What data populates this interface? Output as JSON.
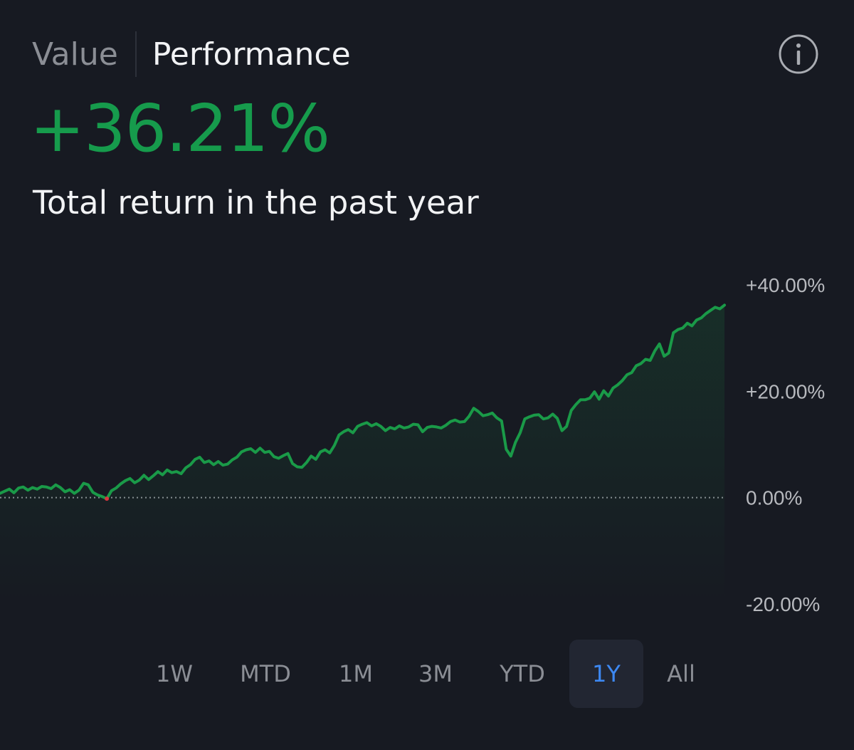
{
  "header": {
    "tab_value": "Value",
    "tab_performance": "Performance",
    "active_tab": "Performance"
  },
  "summary": {
    "total_return": "+36.21%",
    "subtitle": "Total return in the past year"
  },
  "colors": {
    "positive": "#169b4c",
    "line": "#1a9a48",
    "accent": "#3d88f2",
    "background": "#171a22"
  },
  "icons": {
    "info": "info-icon"
  },
  "chart_data": {
    "type": "area",
    "title": "",
    "xlabel": "",
    "ylabel": "",
    "ylim": [
      -20,
      40
    ],
    "yticks": [
      "+40.00%",
      "+20.00%",
      "0.00%",
      "-20.00%"
    ],
    "ytick_values": [
      40,
      20,
      0,
      -20
    ],
    "baseline": 0,
    "baseline_style": "dotted",
    "grid": false,
    "series": [
      {
        "values": [
          0.8,
          1.2,
          1.6,
          0.9,
          1.8,
          2.0,
          1.4,
          1.9,
          1.6,
          2.1,
          2.0,
          1.7,
          2.4,
          1.9,
          1.1,
          1.5,
          0.8,
          1.4,
          2.7,
          2.4,
          1.0,
          0.5,
          0.2,
          -0.2,
          1.3,
          1.8,
          2.6,
          3.2,
          3.6,
          2.8,
          3.3,
          4.2,
          3.4,
          4.1,
          4.9,
          4.3,
          5.2,
          4.7,
          4.9,
          4.5,
          5.6,
          6.2,
          7.2,
          7.6,
          6.6,
          6.9,
          6.2,
          6.8,
          6.1,
          6.3,
          7.1,
          7.6,
          8.6,
          9.0,
          9.2,
          8.5,
          9.3,
          8.5,
          8.7,
          7.7,
          7.4,
          7.9,
          8.3,
          6.4,
          5.8,
          5.7,
          6.6,
          7.8,
          7.2,
          8.6,
          9.0,
          8.4,
          9.8,
          11.8,
          12.4,
          12.8,
          12.2,
          13.4,
          13.8,
          14.1,
          13.5,
          13.9,
          13.4,
          12.6,
          13.2,
          12.9,
          13.5,
          13.1,
          13.3,
          13.8,
          13.7,
          12.4,
          13.2,
          13.4,
          13.3,
          13.1,
          13.6,
          14.3,
          14.6,
          14.2,
          14.3,
          15.3,
          16.8,
          16.2,
          15.4,
          15.6,
          15.9,
          15.0,
          14.4,
          9.1,
          7.8,
          10.4,
          12.2,
          14.8,
          15.2,
          15.5,
          15.6,
          14.8,
          15.0,
          15.7,
          14.9,
          12.6,
          13.4,
          16.4,
          17.5,
          18.4,
          18.4,
          18.7,
          19.9,
          18.5,
          20.1,
          19.1,
          20.6,
          21.2,
          22.0,
          23.1,
          23.5,
          24.8,
          25.2,
          26.0,
          25.8,
          27.6,
          28.9,
          26.6,
          27.2,
          31.0,
          31.6,
          31.9,
          32.8,
          32.3,
          33.4,
          33.8,
          34.6,
          35.2,
          35.8,
          35.5,
          36.2
        ]
      }
    ]
  },
  "ranges": {
    "items": [
      "1W",
      "MTD",
      "1M",
      "3M",
      "YTD",
      "1Y",
      "All"
    ],
    "selected": "1Y"
  }
}
